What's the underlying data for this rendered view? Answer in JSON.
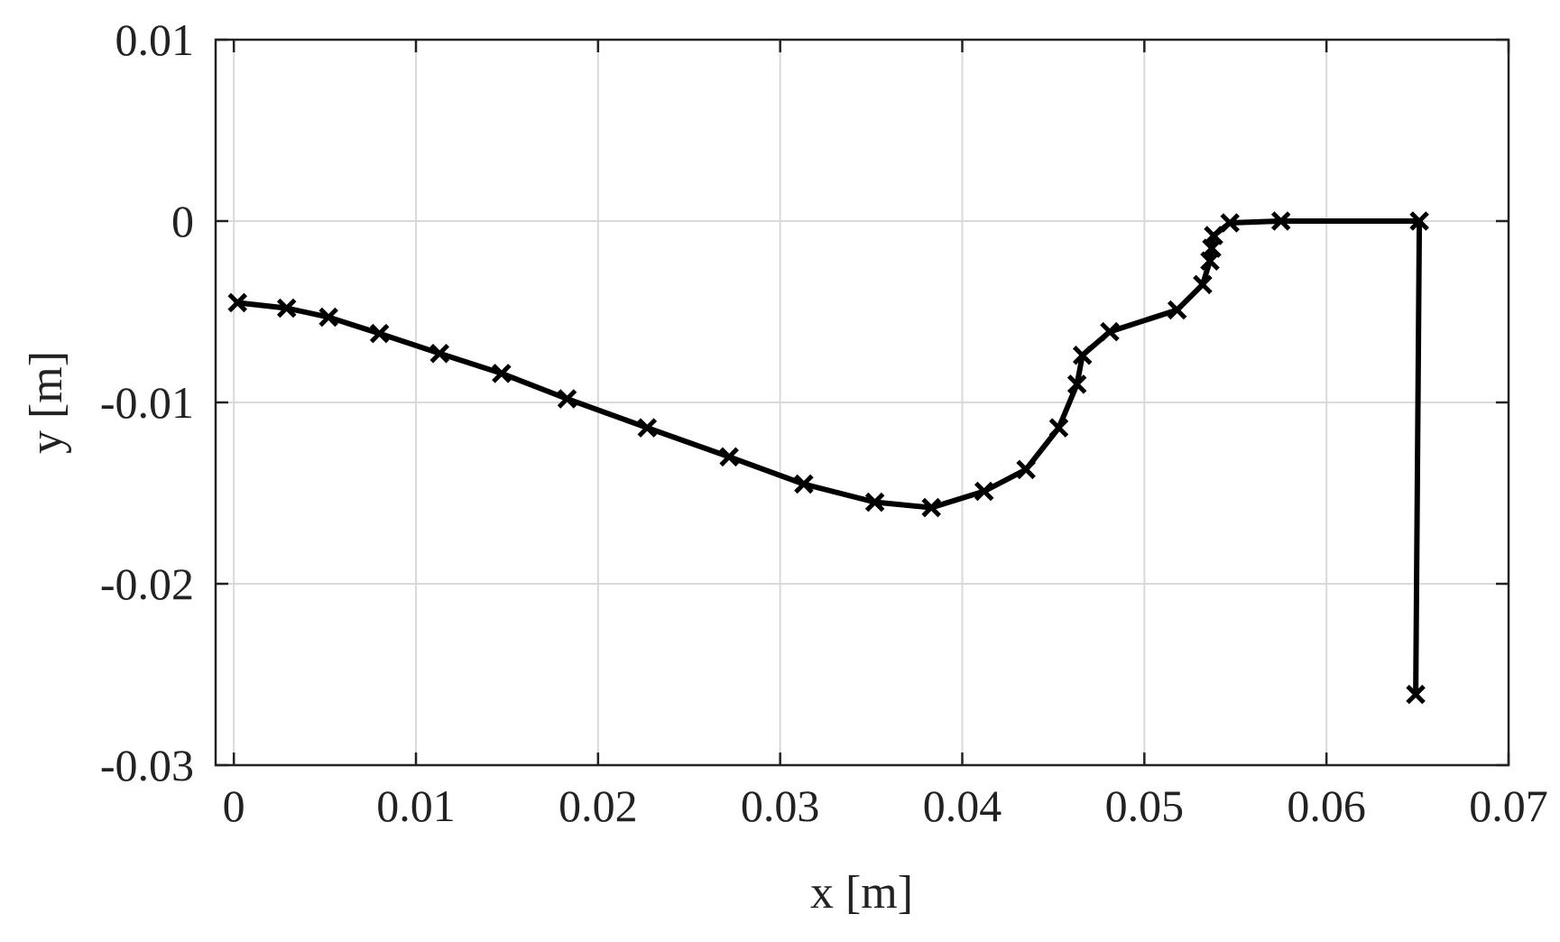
{
  "chart_data": {
    "type": "line",
    "title": "",
    "xlabel": "x [m]",
    "ylabel": "y [m]",
    "xlim": [
      -0.001,
      0.07
    ],
    "ylim": [
      -0.03,
      0.01
    ],
    "xticks": [
      0,
      0.01,
      0.02,
      0.03,
      0.04,
      0.05,
      0.06,
      0.07
    ],
    "xtick_labels": [
      "0",
      "0.01",
      "0.02",
      "0.03",
      "0.04",
      "0.05",
      "0.06",
      "0.07"
    ],
    "yticks": [
      -0.03,
      -0.02,
      -0.01,
      0,
      0.01
    ],
    "ytick_labels": [
      "-0.03",
      "-0.02",
      "-0.01",
      "0",
      "0.01"
    ],
    "grid": true,
    "series": [
      {
        "color": "#000000",
        "marker": "x",
        "x": [
          0.0002,
          0.0029,
          0.0052,
          0.008,
          0.0113,
          0.0147,
          0.0183,
          0.0227,
          0.0272,
          0.0313,
          0.0352,
          0.0383,
          0.0412,
          0.0435,
          0.0453,
          0.0463,
          0.0466,
          0.0481,
          0.0518,
          0.0532,
          0.0536,
          0.0537,
          0.0538,
          0.0547,
          0.0575,
          0.0651,
          0.0649
        ],
        "y": [
          -0.0045,
          -0.0048,
          -0.0053,
          -0.0062,
          -0.0073,
          -0.0084,
          -0.0098,
          -0.0114,
          -0.013,
          -0.0145,
          -0.0155,
          -0.0158,
          -0.0149,
          -0.0137,
          -0.0114,
          -0.009,
          -0.0074,
          -0.0061,
          -0.0049,
          -0.0035,
          -0.0022,
          -0.0015,
          -0.0008,
          -0.0001,
          0.0,
          0.0,
          -0.0261
        ]
      }
    ]
  }
}
